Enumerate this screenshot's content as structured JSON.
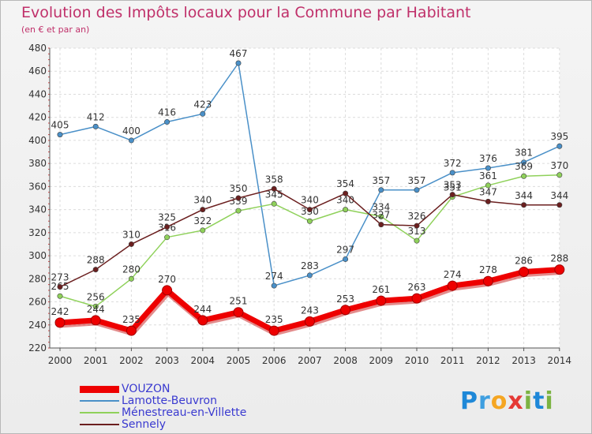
{
  "title": "Evolution des Impôts locaux pour la Commune par Habitant",
  "subtitle": "(en € et par an)",
  "brand": "Proxiti",
  "chart_data": {
    "type": "line",
    "title": "Evolution des Impôts locaux pour la Commune par Habitant",
    "subtitle": "(en € et par an)",
    "xlabel": "",
    "ylabel": "",
    "ylim": [
      220,
      480
    ],
    "yticks": [
      220,
      240,
      260,
      280,
      300,
      320,
      340,
      360,
      380,
      400,
      420,
      440,
      460,
      480
    ],
    "grid": true,
    "legend": "bottom-left",
    "x": [
      "2000",
      "2001",
      "2002",
      "2003",
      "2004",
      "2005",
      "2006",
      "2007",
      "2008",
      "2009",
      "2010",
      "2011",
      "2012",
      "2013",
      "2014"
    ],
    "series": [
      {
        "name": "Lamotte-Beuvron",
        "color": "#4a90c8",
        "values": [
          405,
          412,
          400,
          416,
          423,
          467,
          274,
          283,
          297,
          357,
          357,
          372,
          376,
          381,
          395
        ]
      },
      {
        "name": "Ménestreau-en-Villette",
        "color": "#8fd15a",
        "values": [
          265,
          256,
          280,
          316,
          322,
          339,
          345,
          330,
          340,
          334,
          313,
          351,
          361,
          369,
          370
        ]
      },
      {
        "name": "Sennely",
        "color": "#6b1f1f",
        "values": [
          273,
          288,
          310,
          325,
          340,
          350,
          358,
          340,
          354,
          327,
          326,
          353,
          347,
          344,
          344
        ]
      },
      {
        "name": "VOUZON",
        "color": "#ee0000",
        "values": [
          242,
          244,
          235,
          270,
          244,
          251,
          235,
          243,
          253,
          261,
          263,
          274,
          278,
          286,
          288
        ]
      }
    ]
  }
}
